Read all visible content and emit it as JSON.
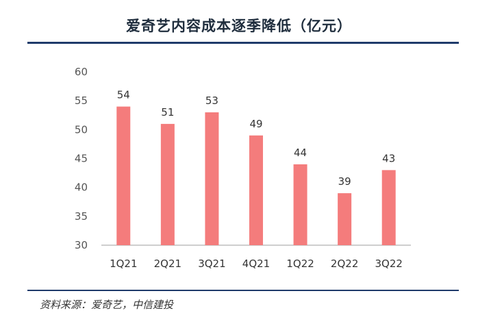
{
  "title": "爱奇艺内容成本逐季降低（亿元）",
  "source": "资料来源：爱奇艺，中信建投",
  "colors": {
    "bar": "#f47c7c",
    "axis": "#bdbdbd",
    "rule": "#1f3b6b"
  },
  "chart_data": {
    "type": "bar",
    "title": "爱奇艺内容成本逐季降低（亿元）",
    "categories": [
      "1Q21",
      "2Q21",
      "3Q21",
      "4Q21",
      "1Q22",
      "2Q22",
      "3Q22"
    ],
    "values": [
      54,
      51,
      53,
      49,
      44,
      39,
      43
    ],
    "ylim": [
      30,
      60
    ],
    "yticks": [
      30,
      35,
      40,
      45,
      50,
      55,
      60
    ],
    "grid": false,
    "xlabel": "",
    "ylabel": ""
  }
}
